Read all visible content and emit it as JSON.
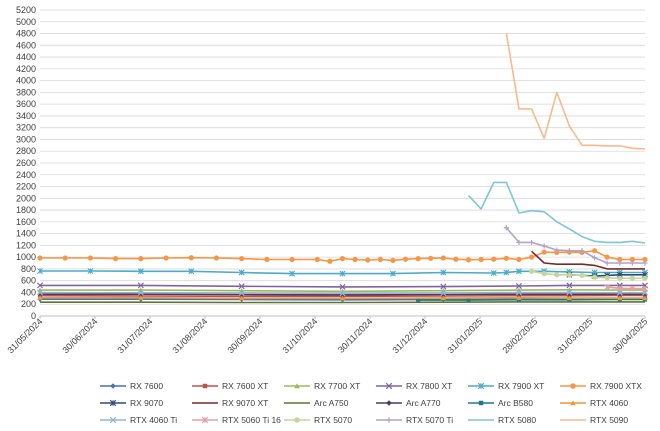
{
  "chart_data": {
    "type": "line",
    "title": "",
    "xlabel": "",
    "ylabel": "",
    "ylim": [
      0,
      5200
    ],
    "y_ticks": [
      0,
      200,
      400,
      600,
      800,
      1000,
      1200,
      1400,
      1600,
      1800,
      2000,
      2200,
      2400,
      2600,
      2800,
      3000,
      3200,
      3400,
      3600,
      3800,
      4000,
      4200,
      4400,
      4600,
      4800,
      5000,
      5200
    ],
    "x_ticks": [
      "31/05/2024",
      "30/06/2024",
      "31/07/2024",
      "31/08/2024",
      "30/09/2024",
      "31/10/2024",
      "30/11/2024",
      "31/12/2024",
      "31/01/2025",
      "28/02/2025",
      "31/03/2025",
      "30/04/2025"
    ],
    "x_range": [
      0,
      48
    ],
    "grid": "horizontal",
    "legend_position": "bottom",
    "series": [
      {
        "name": "RX 7600",
        "color": "#4472C4",
        "marker": "diamond",
        "points": [
          [
            0,
            285
          ],
          [
            8,
            285
          ],
          [
            16,
            280
          ],
          [
            24,
            275
          ],
          [
            32,
            280
          ],
          [
            38,
            285
          ],
          [
            42,
            290
          ],
          [
            46,
            290
          ],
          [
            48,
            290
          ]
        ]
      },
      {
        "name": "RX 7600 XT",
        "color": "#C0504D",
        "marker": "square",
        "points": [
          [
            0,
            345
          ],
          [
            8,
            340
          ],
          [
            16,
            335
          ],
          [
            24,
            335
          ],
          [
            32,
            340
          ],
          [
            38,
            345
          ],
          [
            42,
            345
          ],
          [
            46,
            350
          ],
          [
            48,
            350
          ]
        ]
      },
      {
        "name": "RX 7700 XT",
        "color": "#9BBB59",
        "marker": "triangle",
        "points": [
          [
            0,
            440
          ],
          [
            8,
            440
          ],
          [
            16,
            430
          ],
          [
            24,
            420
          ],
          [
            32,
            430
          ],
          [
            38,
            440
          ],
          [
            42,
            445
          ],
          [
            46,
            440
          ],
          [
            48,
            440
          ]
        ]
      },
      {
        "name": "RX 7800 XT",
        "color": "#8064A2",
        "marker": "x",
        "points": [
          [
            0,
            520
          ],
          [
            8,
            520
          ],
          [
            16,
            505
          ],
          [
            24,
            495
          ],
          [
            32,
            500
          ],
          [
            38,
            510
          ],
          [
            42,
            520
          ],
          [
            46,
            520
          ],
          [
            48,
            520
          ]
        ]
      },
      {
        "name": "RX 7900 XT",
        "color": "#4BACC6",
        "marker": "star",
        "points": [
          [
            0,
            765
          ],
          [
            4,
            765
          ],
          [
            8,
            760
          ],
          [
            12,
            760
          ],
          [
            16,
            740
          ],
          [
            20,
            720
          ],
          [
            24,
            720
          ],
          [
            28,
            720
          ],
          [
            32,
            740
          ],
          [
            36,
            730
          ],
          [
            37,
            740
          ],
          [
            38,
            760
          ],
          [
            40,
            760
          ],
          [
            42,
            750
          ],
          [
            44,
            740
          ],
          [
            46,
            740
          ],
          [
            48,
            740
          ]
        ]
      },
      {
        "name": "RX 7900 XTX",
        "color": "#F79646",
        "marker": "circle",
        "points": [
          [
            0,
            985
          ],
          [
            2,
            985
          ],
          [
            4,
            985
          ],
          [
            6,
            975
          ],
          [
            8,
            975
          ],
          [
            10,
            985
          ],
          [
            12,
            990
          ],
          [
            14,
            985
          ],
          [
            16,
            975
          ],
          [
            18,
            960
          ],
          [
            20,
            960
          ],
          [
            22,
            960
          ],
          [
            23,
            930
          ],
          [
            24,
            975
          ],
          [
            25,
            960
          ],
          [
            26,
            950
          ],
          [
            27,
            960
          ],
          [
            28,
            945
          ],
          [
            29,
            965
          ],
          [
            30,
            975
          ],
          [
            31,
            980
          ],
          [
            32,
            985
          ],
          [
            33,
            965
          ],
          [
            34,
            955
          ],
          [
            35,
            960
          ],
          [
            36,
            965
          ],
          [
            37,
            980
          ],
          [
            38,
            960
          ],
          [
            39,
            1000
          ],
          [
            40,
            1085
          ],
          [
            41,
            1080
          ],
          [
            42,
            1085
          ],
          [
            43,
            1080
          ],
          [
            44,
            1110
          ],
          [
            45,
            1000
          ],
          [
            46,
            960
          ],
          [
            47,
            960
          ],
          [
            48,
            960
          ]
        ]
      },
      {
        "name": "RX 9070",
        "color": "#2C4D75",
        "marker": "star",
        "points": [
          [
            42,
            700
          ],
          [
            44,
            680
          ],
          [
            45,
            690
          ],
          [
            46,
            700
          ],
          [
            48,
            700
          ]
        ]
      },
      {
        "name": "RX 9070 XT",
        "color": "#772C2A",
        "marker": "none",
        "points": [
          [
            39,
            1100
          ],
          [
            40,
            900
          ],
          [
            41,
            880
          ],
          [
            42,
            880
          ],
          [
            43,
            880
          ],
          [
            44,
            860
          ],
          [
            45,
            800
          ],
          [
            46,
            800
          ],
          [
            48,
            800
          ]
        ]
      },
      {
        "name": "Arc A750",
        "color": "#5F7530",
        "marker": "none",
        "points": [
          [
            0,
            235
          ],
          [
            8,
            235
          ],
          [
            16,
            230
          ],
          [
            24,
            230
          ],
          [
            32,
            235
          ],
          [
            38,
            240
          ],
          [
            42,
            240
          ],
          [
            46,
            240
          ],
          [
            48,
            240
          ]
        ]
      },
      {
        "name": "Arc A770",
        "color": "#4D3B62",
        "marker": "diamond",
        "points": [
          [
            0,
            370
          ],
          [
            8,
            370
          ],
          [
            16,
            365
          ],
          [
            24,
            360
          ],
          [
            32,
            365
          ],
          [
            38,
            370
          ],
          [
            42,
            370
          ],
          [
            46,
            370
          ],
          [
            48,
            370
          ]
        ]
      },
      {
        "name": "Arc B580",
        "color": "#1F7A8C",
        "marker": "square",
        "points": [
          [
            30,
            270
          ],
          [
            34,
            270
          ],
          [
            38,
            275
          ],
          [
            42,
            275
          ],
          [
            46,
            280
          ],
          [
            48,
            280
          ]
        ]
      },
      {
        "name": "RTX 4060",
        "color": "#E59A3C",
        "marker": "triangle",
        "points": [
          [
            0,
            310
          ],
          [
            8,
            310
          ],
          [
            16,
            300
          ],
          [
            24,
            300
          ],
          [
            32,
            305
          ],
          [
            38,
            310
          ],
          [
            42,
            305
          ],
          [
            46,
            305
          ],
          [
            48,
            305
          ]
        ]
      },
      {
        "name": "RTX 4060 Ti",
        "color": "#95B3D7",
        "marker": "x",
        "points": [
          [
            0,
            400
          ],
          [
            8,
            395
          ],
          [
            16,
            390
          ],
          [
            24,
            385
          ],
          [
            32,
            390
          ],
          [
            38,
            400
          ],
          [
            42,
            400
          ],
          [
            46,
            395
          ],
          [
            48,
            395
          ]
        ]
      },
      {
        "name": "RTX 5060 Ti 16",
        "color": "#E6A0A0",
        "marker": "star",
        "points": [
          [
            45,
            490
          ],
          [
            46,
            470
          ],
          [
            47,
            465
          ],
          [
            48,
            465
          ]
        ]
      },
      {
        "name": "RTX 5070",
        "color": "#C3D69B",
        "marker": "circle",
        "points": [
          [
            39,
            760
          ],
          [
            40,
            720
          ],
          [
            41,
            700
          ],
          [
            42,
            700
          ],
          [
            43,
            690
          ],
          [
            44,
            660
          ],
          [
            45,
            650
          ],
          [
            46,
            640
          ],
          [
            47,
            640
          ],
          [
            48,
            640
          ]
        ]
      },
      {
        "name": "RTX 5070 Ti",
        "color": "#B3A2C7",
        "marker": "plus",
        "points": [
          [
            37,
            1500
          ],
          [
            38,
            1250
          ],
          [
            39,
            1250
          ],
          [
            40,
            1190
          ],
          [
            41,
            1120
          ],
          [
            42,
            1110
          ],
          [
            43,
            1110
          ],
          [
            44,
            990
          ],
          [
            45,
            900
          ],
          [
            46,
            900
          ],
          [
            47,
            900
          ],
          [
            48,
            900
          ]
        ]
      },
      {
        "name": "RTX 5080",
        "color": "#7FC5D9",
        "marker": "none",
        "points": [
          [
            34,
            2050
          ],
          [
            35,
            1820
          ],
          [
            36,
            2270
          ],
          [
            37,
            2270
          ],
          [
            38,
            1750
          ],
          [
            39,
            1790
          ],
          [
            40,
            1770
          ],
          [
            41,
            1600
          ],
          [
            42,
            1480
          ],
          [
            43,
            1350
          ],
          [
            44,
            1270
          ],
          [
            45,
            1250
          ],
          [
            46,
            1250
          ],
          [
            47,
            1270
          ],
          [
            48,
            1240
          ]
        ]
      },
      {
        "name": "RTX 5090",
        "color": "#FAB98B",
        "marker": "none",
        "points": [
          [
            37,
            4800
          ],
          [
            38,
            3520
          ],
          [
            39,
            3520
          ],
          [
            40,
            3020
          ],
          [
            41,
            3800
          ],
          [
            42,
            3230
          ],
          [
            43,
            2900
          ],
          [
            44,
            2900
          ],
          [
            45,
            2890
          ],
          [
            46,
            2890
          ],
          [
            47,
            2850
          ],
          [
            48,
            2840
          ]
        ]
      }
    ]
  }
}
